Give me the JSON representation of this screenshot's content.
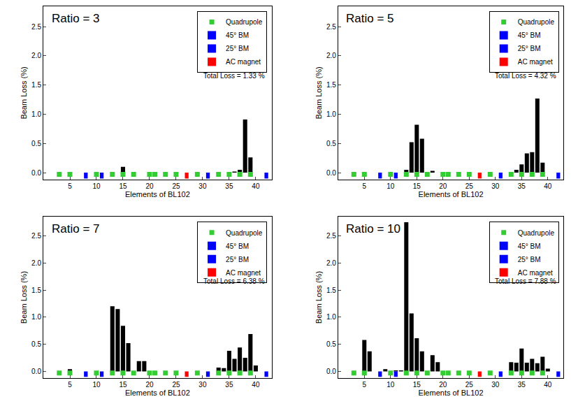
{
  "chart_data": [
    {
      "type": "bar",
      "title": "Ratio = 3",
      "annotations": [
        "Total Loss = 1.33 %"
      ],
      "x_label": "Elements of BL102",
      "y_label": "Beam Loss (%)",
      "xlim": [
        0,
        43
      ],
      "xticks": [
        5,
        10,
        15,
        20,
        25,
        30,
        35,
        40
      ],
      "ylim": [
        -0.12,
        2.85
      ],
      "yticks": [
        {
          "value": 0,
          "label": "0.0"
        },
        {
          "value": 0.5,
          "label": "0.5"
        },
        {
          "value": 1,
          "label": "1.0"
        },
        {
          "value": 1.5,
          "label": "1.5"
        },
        {
          "value": 2,
          "label": "2.0"
        },
        {
          "value": 2.5,
          "label": "2.5"
        }
      ],
      "grid": false,
      "legend": "upper right",
      "series": [
        {
          "type": "bar",
          "color": "#000000",
          "x": [
            15,
            36,
            37,
            38,
            39
          ],
          "values": [
            0.1,
            0.02,
            0.05,
            0.91,
            0.26
          ]
        },
        {
          "name": "Quadrupole",
          "type": "scatter",
          "marker": "square",
          "color": "#33cc33",
          "x": [
            3,
            5,
            10,
            13,
            15,
            17,
            20,
            21,
            23,
            25,
            29,
            33,
            35,
            37,
            39
          ],
          "values": [
            -0.03,
            -0.03,
            -0.03,
            -0.03,
            -0.03,
            -0.03,
            -0.03,
            -0.03,
            -0.03,
            -0.03,
            -0.03,
            -0.03,
            -0.03,
            -0.03,
            -0.03
          ]
        },
        {
          "name": "45° BM",
          "type": "bar",
          "color": "#0000ff",
          "x": [
            8,
            11,
            42
          ],
          "values": [
            -0.1,
            -0.1,
            -0.1
          ]
        },
        {
          "name": "25° BM",
          "type": "bar",
          "color": "#0000ff",
          "x": [
            31
          ],
          "values": [
            -0.1
          ]
        },
        {
          "name": "AC magnet",
          "type": "bar",
          "color": "#ff0000",
          "x": [
            27
          ],
          "values": [
            -0.1
          ]
        }
      ]
    },
    {
      "type": "bar",
      "title": "Ratio = 5",
      "annotations": [
        "Total Loss = 4.32 %"
      ],
      "x_label": "Elements of BL102",
      "y_label": "Beam Loss (%)",
      "xlim": [
        0,
        43
      ],
      "xticks": [
        5,
        10,
        15,
        20,
        25,
        30,
        35,
        40
      ],
      "ylim": [
        -0.12,
        2.85
      ],
      "yticks": [
        {
          "value": 0,
          "label": "0.0"
        },
        {
          "value": 0.5,
          "label": "0.5"
        },
        {
          "value": 1,
          "label": "1.0"
        },
        {
          "value": 1.5,
          "label": "1.5"
        },
        {
          "value": 2,
          "label": "2.0"
        },
        {
          "value": 2.5,
          "label": "2.5"
        }
      ],
      "grid": false,
      "legend": "upper right",
      "series": [
        {
          "type": "bar",
          "color": "#000000",
          "x": [
            13,
            14,
            15,
            16,
            18,
            34,
            35,
            36,
            37,
            38,
            39
          ],
          "values": [
            0.05,
            0.52,
            0.82,
            0.58,
            0.03,
            0.05,
            0.14,
            0.33,
            0.35,
            1.27,
            0.17
          ]
        },
        {
          "name": "Quadrupole",
          "type": "scatter",
          "marker": "square",
          "color": "#33cc33",
          "x": [
            3,
            5,
            10,
            13,
            15,
            17,
            20,
            21,
            23,
            25,
            29,
            33,
            35,
            37,
            39
          ],
          "values": [
            -0.03,
            -0.03,
            -0.03,
            -0.03,
            -0.03,
            -0.03,
            -0.03,
            -0.03,
            -0.03,
            -0.03,
            -0.03,
            -0.03,
            -0.03,
            -0.03,
            -0.03
          ]
        },
        {
          "name": "45° BM",
          "type": "bar",
          "color": "#0000ff",
          "x": [
            8,
            11,
            42
          ],
          "values": [
            -0.1,
            -0.1,
            -0.1
          ]
        },
        {
          "name": "25° BM",
          "type": "bar",
          "color": "#0000ff",
          "x": [
            31
          ],
          "values": [
            -0.1
          ]
        },
        {
          "name": "AC magnet",
          "type": "bar",
          "color": "#ff0000",
          "x": [
            27
          ],
          "values": [
            -0.1
          ]
        }
      ]
    },
    {
      "type": "bar",
      "title": "Ratio = 7",
      "annotations": [
        "Total Loss = 6.38 %"
      ],
      "x_label": "Elements of BL102",
      "y_label": "Beam Loss (%)",
      "xlim": [
        0,
        43
      ],
      "xticks": [
        5,
        10,
        15,
        20,
        25,
        30,
        35,
        40
      ],
      "ylim": [
        -0.12,
        2.85
      ],
      "yticks": [
        {
          "value": 0,
          "label": "0.0"
        },
        {
          "value": 0.5,
          "label": "0.5"
        },
        {
          "value": 1,
          "label": "1.0"
        },
        {
          "value": 1.5,
          "label": "1.5"
        },
        {
          "value": 2,
          "label": "2.0"
        },
        {
          "value": 2.5,
          "label": "2.5"
        }
      ],
      "grid": false,
      "legend": "upper right",
      "series": [
        {
          "type": "bar",
          "color": "#000000",
          "x": [
            5,
            13,
            14,
            15,
            16,
            18,
            19,
            33,
            34,
            35,
            36,
            37,
            38,
            39,
            40
          ],
          "values": [
            0.04,
            1.2,
            1.15,
            0.84,
            0.52,
            0.19,
            0.19,
            0.07,
            0.06,
            0.38,
            0.23,
            0.44,
            0.25,
            0.69,
            0.11
          ]
        },
        {
          "name": "Quadrupole",
          "type": "scatter",
          "marker": "square",
          "color": "#33cc33",
          "x": [
            3,
            5,
            10,
            13,
            15,
            17,
            20,
            21,
            23,
            25,
            29,
            33,
            35,
            37,
            39
          ],
          "values": [
            -0.03,
            -0.03,
            -0.03,
            -0.03,
            -0.03,
            -0.03,
            -0.03,
            -0.03,
            -0.03,
            -0.03,
            -0.03,
            -0.03,
            -0.03,
            -0.03,
            -0.03
          ]
        },
        {
          "name": "45° BM",
          "type": "bar",
          "color": "#0000ff",
          "x": [
            8,
            11,
            42
          ],
          "values": [
            -0.1,
            -0.1,
            -0.1
          ]
        },
        {
          "name": "25° BM",
          "type": "bar",
          "color": "#0000ff",
          "x": [
            31
          ],
          "values": [
            -0.1
          ]
        },
        {
          "name": "AC magnet",
          "type": "bar",
          "color": "#ff0000",
          "x": [
            27
          ],
          "values": [
            -0.1
          ]
        }
      ]
    },
    {
      "type": "bar",
      "title": "Ratio = 10",
      "annotations": [
        "Total Loss = 7.88 %"
      ],
      "x_label": "Elements of BL102",
      "y_label": "Beam Loss (%)",
      "xlim": [
        0,
        43
      ],
      "xticks": [
        5,
        10,
        15,
        20,
        25,
        30,
        35,
        40
      ],
      "ylim": [
        -0.12,
        2.85
      ],
      "yticks": [
        {
          "value": 0,
          "label": "0.0"
        },
        {
          "value": 0.5,
          "label": "0.5"
        },
        {
          "value": 1,
          "label": "1.0"
        },
        {
          "value": 1.5,
          "label": "1.5"
        },
        {
          "value": 2,
          "label": "2.0"
        },
        {
          "value": 2.5,
          "label": "2.5"
        }
      ],
      "grid": false,
      "legend": "upper right",
      "series": [
        {
          "type": "bar",
          "color": "#000000",
          "x": [
            5,
            6,
            9,
            11,
            12,
            13,
            14,
            15,
            16,
            18,
            19,
            33,
            34,
            35,
            36,
            37,
            38,
            39,
            40
          ],
          "values": [
            0.58,
            0.37,
            0.04,
            0.02,
            0.02,
            2.75,
            1.07,
            0.61,
            0.37,
            0.3,
            0.17,
            0.17,
            0.16,
            0.42,
            0.16,
            0.23,
            0.15,
            0.27,
            0.05
          ]
        },
        {
          "name": "Quadrupole",
          "type": "scatter",
          "marker": "square",
          "color": "#33cc33",
          "x": [
            3,
            5,
            10,
            13,
            15,
            17,
            20,
            21,
            23,
            25,
            29,
            33,
            35,
            37,
            39
          ],
          "values": [
            -0.03,
            -0.03,
            -0.03,
            -0.03,
            -0.03,
            -0.03,
            -0.03,
            -0.03,
            -0.03,
            -0.03,
            -0.03,
            -0.03,
            -0.03,
            -0.03,
            -0.03
          ]
        },
        {
          "name": "45° BM",
          "type": "bar",
          "color": "#0000ff",
          "x": [
            8,
            11,
            42
          ],
          "values": [
            -0.1,
            -0.1,
            -0.1
          ]
        },
        {
          "name": "25° BM",
          "type": "bar",
          "color": "#0000ff",
          "x": [
            31
          ],
          "values": [
            -0.1
          ]
        },
        {
          "name": "AC magnet",
          "type": "bar",
          "color": "#ff0000",
          "x": [
            27
          ],
          "values": [
            -0.1
          ]
        }
      ]
    }
  ]
}
